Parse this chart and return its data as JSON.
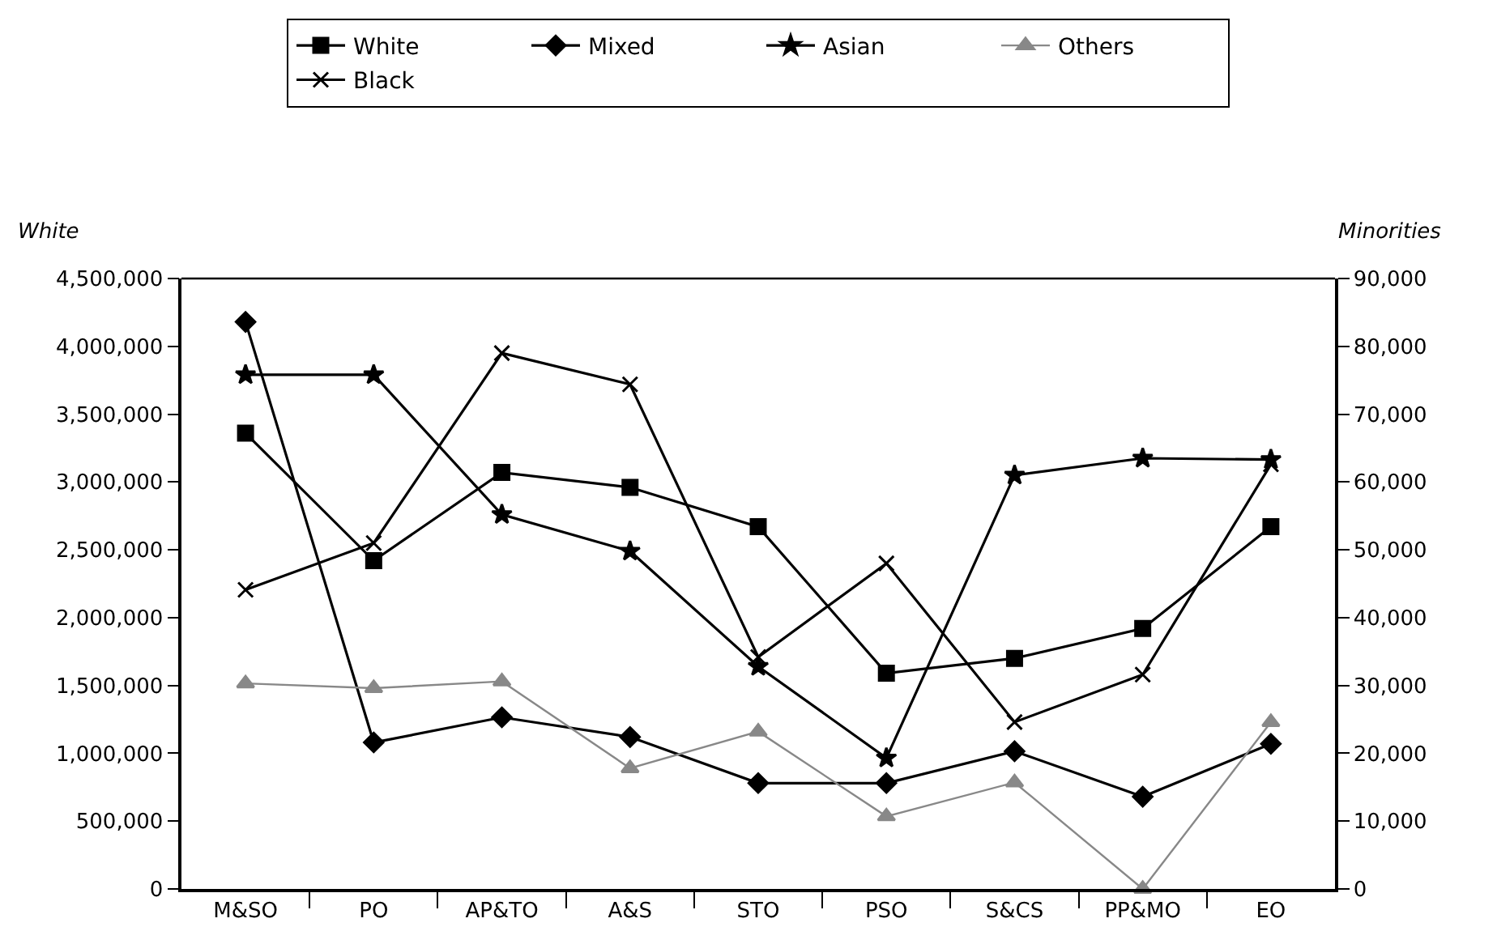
{
  "chart_data": {
    "type": "line",
    "categories": [
      "M&SO",
      "PO",
      "AP&TO",
      "A&S",
      "STO",
      "PSO",
      "S&CS",
      "PP&MO",
      "EO"
    ],
    "ylabel": "White",
    "y2label": "Minorities",
    "ylim": [
      0,
      4500000
    ],
    "yticks": [
      {
        "value": 0,
        "label": "0"
      },
      {
        "value": 500000,
        "label": "500,000"
      },
      {
        "value": 1000000,
        "label": "1,000,000"
      },
      {
        "value": 1500000,
        "label": "1,500,000"
      },
      {
        "value": 2000000,
        "label": "2,000,000"
      },
      {
        "value": 2500000,
        "label": "2,500,000"
      },
      {
        "value": 3000000,
        "label": "3,000,000"
      },
      {
        "value": 3500000,
        "label": "3,500,000"
      },
      {
        "value": 4000000,
        "label": "4,000,000"
      },
      {
        "value": 4500000,
        "label": "4,500,000"
      }
    ],
    "y2lim": [
      0,
      90000
    ],
    "y2ticks": [
      {
        "value": 0,
        "label": "0"
      },
      {
        "value": 10000,
        "label": "10,000"
      },
      {
        "value": 20000,
        "label": "20,000"
      },
      {
        "value": 30000,
        "label": "30,000"
      },
      {
        "value": 40000,
        "label": "40,000"
      },
      {
        "value": 50000,
        "label": "50,000"
      },
      {
        "value": 60000,
        "label": "60,000"
      },
      {
        "value": 70000,
        "label": "70,000"
      },
      {
        "value": 80000,
        "label": "80,000"
      },
      {
        "value": 90000,
        "label": "90,000"
      }
    ],
    "grid": false,
    "legend": "top",
    "line_style": "solid",
    "series": [
      {
        "name": "White",
        "color": "#000000",
        "marker": "square",
        "values": [
          3360000,
          2420000,
          3070000,
          2960000,
          2670000,
          1590000,
          1700000,
          1920000,
          2670000
        ]
      },
      {
        "name": "Mixed",
        "color": "#000000",
        "marker": "diamond",
        "axis": "y2",
        "values": [
          83600,
          21600,
          25300,
          22400,
          15600,
          15600,
          20300,
          13600,
          21400
        ]
      },
      {
        "name": "Asian",
        "color": "#000000",
        "marker": "star",
        "axis": "y2",
        "values": [
          75800,
          75800,
          55200,
          49800,
          32800,
          19300,
          61000,
          63500,
          63300
        ]
      },
      {
        "name": "Others",
        "color": "#888888",
        "marker": "triangle",
        "axis": "y2",
        "values": [
          30300,
          29600,
          30600,
          17800,
          23200,
          10700,
          15700,
          0,
          24600
        ]
      },
      {
        "name": "Black",
        "color": "#000000",
        "marker": "cross",
        "axis": "y2",
        "values": [
          44100,
          51000,
          79000,
          74400,
          34200,
          48000,
          24600,
          31600,
          62600
        ]
      }
    ]
  }
}
